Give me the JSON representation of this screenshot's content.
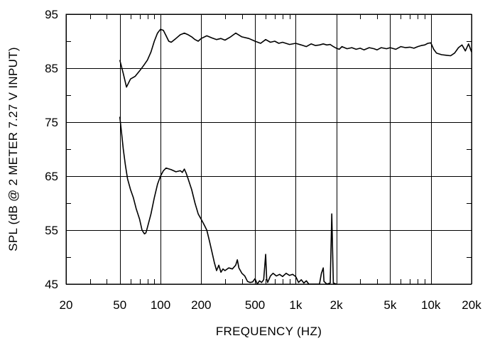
{
  "chart_data": {
    "type": "line",
    "title": "",
    "xlabel": "FREQUENCY  (HZ)",
    "ylabel": "SPL (dB @ 2 METER 7.27 V  INPUT)",
    "xscale": "log",
    "xlim": [
      20,
      20000
    ],
    "ylim": [
      45,
      95
    ],
    "grid": true,
    "x_ticks": [
      {
        "value": 20,
        "label": "20"
      },
      {
        "value": 50,
        "label": "50"
      },
      {
        "value": 100,
        "label": "100"
      },
      {
        "value": 200,
        "label": "200"
      },
      {
        "value": 500,
        "label": "500"
      },
      {
        "value": 1000,
        "label": "1k"
      },
      {
        "value": 2000,
        "label": "2k"
      },
      {
        "value": 5000,
        "label": "5k"
      },
      {
        "value": 10000,
        "label": "10k"
      },
      {
        "value": 20000,
        "label": "20k"
      }
    ],
    "x_minor_gridlines": [
      30,
      40,
      60,
      70,
      80,
      90,
      300,
      400,
      600,
      700,
      800,
      900,
      3000,
      4000,
      6000,
      7000,
      8000,
      9000
    ],
    "y_ticks": [
      45,
      55,
      65,
      75,
      85,
      95
    ],
    "y_minor_gridlines": [
      50,
      60,
      70,
      80,
      90
    ],
    "series": [
      {
        "points": [
          [
            50,
            86.5
          ],
          [
            53,
            84
          ],
          [
            56,
            81.5
          ],
          [
            60,
            83
          ],
          [
            65,
            83.5
          ],
          [
            70,
            84.5
          ],
          [
            75,
            85.5
          ],
          [
            80,
            86.5
          ],
          [
            85,
            88
          ],
          [
            90,
            90
          ],
          [
            95,
            91.5
          ],
          [
            100,
            92.2
          ],
          [
            105,
            92
          ],
          [
            110,
            91
          ],
          [
            115,
            90
          ],
          [
            120,
            89.8
          ],
          [
            130,
            90.5
          ],
          [
            140,
            91.2
          ],
          [
            150,
            91.5
          ],
          [
            160,
            91.2
          ],
          [
            170,
            90.8
          ],
          [
            180,
            90.3
          ],
          [
            190,
            90
          ],
          [
            200,
            90.5
          ],
          [
            220,
            91
          ],
          [
            240,
            90.6
          ],
          [
            260,
            90.3
          ],
          [
            280,
            90.5
          ],
          [
            300,
            90.2
          ],
          [
            330,
            90.8
          ],
          [
            360,
            91.5
          ],
          [
            400,
            90.8
          ],
          [
            450,
            90.5
          ],
          [
            500,
            90
          ],
          [
            550,
            89.6
          ],
          [
            600,
            90.3
          ],
          [
            650,
            89.8
          ],
          [
            700,
            90
          ],
          [
            750,
            89.6
          ],
          [
            800,
            89.8
          ],
          [
            900,
            89.4
          ],
          [
            1000,
            89.6
          ],
          [
            1100,
            89.3
          ],
          [
            1200,
            89
          ],
          [
            1300,
            89.5
          ],
          [
            1400,
            89.2
          ],
          [
            1500,
            89.3
          ],
          [
            1600,
            89.5
          ],
          [
            1700,
            89.3
          ],
          [
            1800,
            89.4
          ],
          [
            1900,
            89
          ],
          [
            2000,
            88.7
          ],
          [
            2100,
            88.5
          ],
          [
            2200,
            89
          ],
          [
            2400,
            88.6
          ],
          [
            2600,
            88.8
          ],
          [
            2800,
            88.5
          ],
          [
            3000,
            88.7
          ],
          [
            3200,
            88.4
          ],
          [
            3500,
            88.8
          ],
          [
            3800,
            88.6
          ],
          [
            4000,
            88.4
          ],
          [
            4300,
            88.8
          ],
          [
            4700,
            88.6
          ],
          [
            5000,
            88.8
          ],
          [
            5500,
            88.5
          ],
          [
            6000,
            89
          ],
          [
            6500,
            88.8
          ],
          [
            7000,
            88.9
          ],
          [
            7500,
            88.7
          ],
          [
            8000,
            89
          ],
          [
            8500,
            89.2
          ],
          [
            9000,
            89.3
          ],
          [
            9500,
            89.6
          ],
          [
            10000,
            89.7
          ],
          [
            10500,
            88.5
          ],
          [
            11000,
            87.8
          ],
          [
            12000,
            87.5
          ],
          [
            13000,
            87.4
          ],
          [
            14000,
            87.3
          ],
          [
            15000,
            87.8
          ],
          [
            16000,
            88.8
          ],
          [
            17000,
            89.3
          ],
          [
            18000,
            88.2
          ],
          [
            19000,
            89.5
          ],
          [
            20000,
            88
          ]
        ]
      },
      {
        "points": [
          [
            50,
            76
          ],
          [
            51.5,
            73
          ],
          [
            53,
            70
          ],
          [
            55,
            67
          ],
          [
            57,
            64.5
          ],
          [
            60,
            62.5
          ],
          [
            63,
            61
          ],
          [
            66,
            59
          ],
          [
            70,
            57
          ],
          [
            73,
            55
          ],
          [
            76,
            54.3
          ],
          [
            78,
            54.5
          ],
          [
            80,
            55.5
          ],
          [
            85,
            58
          ],
          [
            90,
            61
          ],
          [
            95,
            63.5
          ],
          [
            100,
            65
          ],
          [
            105,
            66
          ],
          [
            110,
            66.5
          ],
          [
            120,
            66.2
          ],
          [
            130,
            65.8
          ],
          [
            140,
            66
          ],
          [
            145,
            65.7
          ],
          [
            150,
            66.3
          ],
          [
            155,
            65.5
          ],
          [
            160,
            64.5
          ],
          [
            170,
            62.5
          ],
          [
            180,
            60
          ],
          [
            190,
            58
          ],
          [
            200,
            57
          ],
          [
            210,
            56
          ],
          [
            220,
            55
          ],
          [
            230,
            53
          ],
          [
            240,
            51
          ],
          [
            250,
            49
          ],
          [
            260,
            47.5
          ],
          [
            270,
            48.5
          ],
          [
            280,
            47.2
          ],
          [
            290,
            47.8
          ],
          [
            300,
            47.5
          ],
          [
            320,
            48
          ],
          [
            340,
            47.8
          ],
          [
            360,
            48.5
          ],
          [
            370,
            49.5
          ],
          [
            380,
            48
          ],
          [
            400,
            47
          ],
          [
            420,
            46.5
          ],
          [
            440,
            45.5
          ],
          [
            460,
            45.3
          ],
          [
            480,
            45.4
          ],
          [
            500,
            46
          ],
          [
            520,
            45
          ],
          [
            540,
            45.6
          ],
          [
            560,
            45.3
          ],
          [
            580,
            45.8
          ],
          [
            600,
            50.5
          ],
          [
            610,
            46
          ],
          [
            620,
            45.3
          ],
          [
            650,
            46.5
          ],
          [
            680,
            47
          ],
          [
            720,
            46.5
          ],
          [
            760,
            46.8
          ],
          [
            800,
            46.4
          ],
          [
            850,
            47
          ],
          [
            900,
            46.6
          ],
          [
            950,
            46.8
          ],
          [
            1000,
            46.4
          ],
          [
            1050,
            45.3
          ],
          [
            1100,
            45.8
          ],
          [
            1150,
            45.2
          ],
          [
            1200,
            45.6
          ],
          [
            1250,
            45
          ],
          [
            1500,
            45
          ],
          [
            1550,
            47
          ],
          [
            1600,
            48
          ],
          [
            1620,
            45.5
          ],
          [
            1700,
            45
          ],
          [
            1800,
            45.2
          ],
          [
            1850,
            58
          ],
          [
            1900,
            45.2
          ],
          [
            2000,
            45
          ]
        ]
      }
    ]
  }
}
